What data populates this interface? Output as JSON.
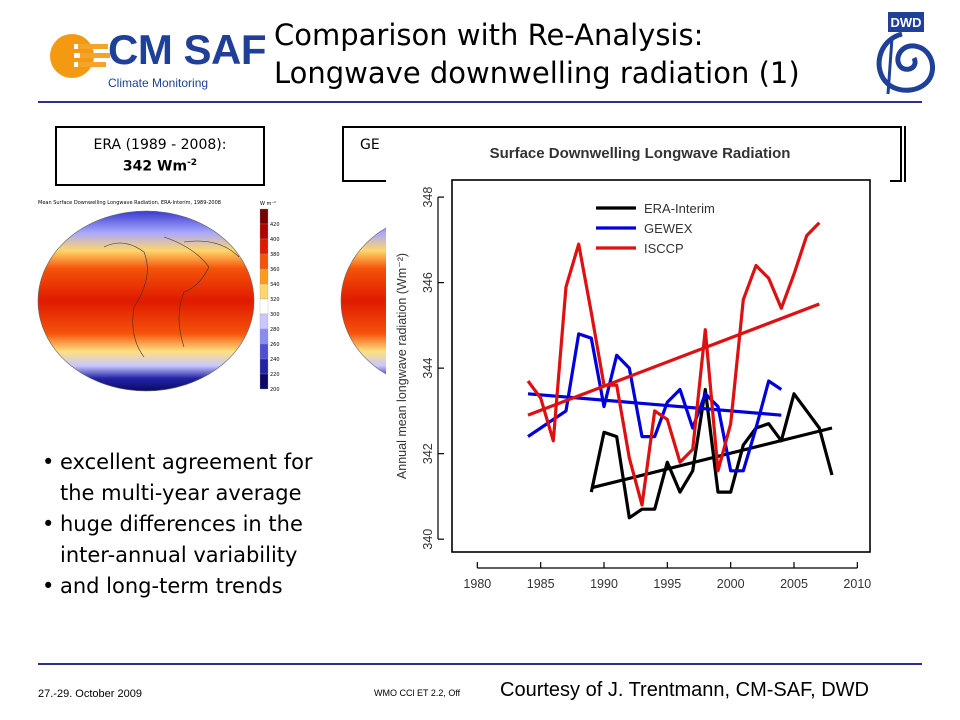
{
  "header": {
    "logo_text": "CM SAF",
    "logo_subtitle": "Climate Monitoring",
    "title_line1": "Comparison with Re-Analysis:",
    "title_line2": "Longwave downwelling radiation (1)",
    "dwd_label": "DWD"
  },
  "boxes": {
    "era_line1": "ERA (1989 - 2008):",
    "era_value": "342 Wm",
    "era_exp": "-2",
    "gewex_partial": "GE"
  },
  "maps": {
    "era_title": "Mean Surface Downwelling Longwave Radiation, ERA-Interim, 1989-2008",
    "unit": "W m⁻²",
    "scale": [
      "420",
      "400",
      "380",
      "360",
      "340",
      "320",
      "300",
      "280",
      "260",
      "240",
      "220",
      "200"
    ],
    "scale_colors": [
      "#7a0000",
      "#b00000",
      "#e01a00",
      "#f5530a",
      "#ff9a1a",
      "#ffd66b",
      "#ffffff",
      "#c8c8ff",
      "#8c8cf0",
      "#4f4fd6",
      "#2323a8",
      "#0a0a66"
    ]
  },
  "bullets": [
    {
      "line1": "excellent agreement for",
      "line2": "the multi-year average"
    },
    {
      "line1": "huge differences in the",
      "line2": "inter-annual variability"
    },
    {
      "line1": "and long-term trends",
      "line2": ""
    }
  ],
  "footer": {
    "date": "27.-29. October 2009",
    "meeting": "WMO CCl ET 2.2, Off",
    "courtesy": "Courtesy of J. Trentmann, CM-SAF, DWD"
  },
  "chart_data": {
    "type": "line",
    "title": "Surface Downwelling Longwave Radiation",
    "xlabel": "",
    "ylabel": "Annual mean longwave radiation (Wm⁻²)",
    "xlim": [
      1978,
      2011
    ],
    "ylim": [
      339.7,
      348.4
    ],
    "xticks": [
      1980,
      1985,
      1990,
      1995,
      2000,
      2005,
      2010
    ],
    "yticks": [
      340,
      342,
      344,
      346,
      348
    ],
    "legend_position": "top-left",
    "series": [
      {
        "name": "ERA-Interim",
        "color": "#000000",
        "x": [
          1989,
          1990,
          1991,
          1992,
          1993,
          1994,
          1995,
          1996,
          1997,
          1998,
          1999,
          2000,
          2001,
          2002,
          2003,
          2004,
          2005,
          2006,
          2007,
          2008
        ],
        "y": [
          341.1,
          342.5,
          342.4,
          340.5,
          340.7,
          340.7,
          341.8,
          341.1,
          341.6,
          343.5,
          341.1,
          341.1,
          342.2,
          342.6,
          342.7,
          342.3,
          343.4,
          343.0,
          342.6,
          341.5
        ],
        "trend": [
          [
            1989,
            341.2
          ],
          [
            2008,
            342.6
          ]
        ]
      },
      {
        "name": "GEWEX",
        "color": "#0000dd",
        "x": [
          1984,
          1985,
          1986,
          1987,
          1988,
          1989,
          1990,
          1991,
          1992,
          1993,
          1994,
          1995,
          1996,
          1997,
          1998,
          1999,
          2000,
          2001,
          2002,
          2003,
          2004
        ],
        "y": [
          342.4,
          342.6,
          342.8,
          343.0,
          344.8,
          344.7,
          343.1,
          344.3,
          344.0,
          342.4,
          342.4,
          343.2,
          343.5,
          342.6,
          343.4,
          343.1,
          341.6,
          341.6,
          342.6,
          343.7,
          343.5
        ],
        "trend": [
          [
            1984,
            343.4
          ],
          [
            2004,
            342.9
          ]
        ]
      },
      {
        "name": "ISCCP",
        "color": "#dd1111",
        "x": [
          1984,
          1985,
          1986,
          1987,
          1988,
          1989,
          1990,
          1991,
          1992,
          1993,
          1994,
          1995,
          1996,
          1997,
          1998,
          1999,
          2000,
          2001,
          2002,
          2003,
          2004,
          2005,
          2006,
          2007
        ],
        "y": [
          343.7,
          343.3,
          342.3,
          345.9,
          346.9,
          345.3,
          343.6,
          343.6,
          341.9,
          340.8,
          343.0,
          342.8,
          341.8,
          342.1,
          344.9,
          341.6,
          342.7,
          345.6,
          346.4,
          346.1,
          345.4,
          346.2,
          347.1,
          347.4
        ],
        "trend": [
          [
            1984,
            342.9
          ],
          [
            2007,
            345.5
          ]
        ]
      }
    ]
  }
}
